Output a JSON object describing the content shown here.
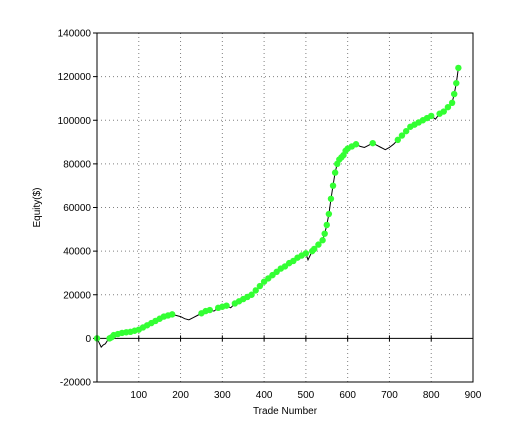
{
  "chart_data": {
    "type": "line",
    "title": "",
    "xlabel": "Trade Number",
    "ylabel": "Equity($)",
    "xlim": [
      0,
      900
    ],
    "ylim": [
      -20000,
      140000
    ],
    "x_ticks": [
      100,
      200,
      300,
      400,
      500,
      600,
      700,
      800,
      900
    ],
    "x_tick_labels": [
      "100",
      "200",
      "300",
      "400",
      "500",
      "600",
      "700",
      "800",
      "900"
    ],
    "y_ticks": [
      -20000,
      0,
      20000,
      40000,
      60000,
      80000,
      100000,
      120000,
      140000
    ],
    "y_tick_labels": [
      "-20000",
      "0",
      "20000",
      "40000",
      "60000",
      "80000",
      "100000",
      "120000",
      "140000"
    ],
    "grid": true,
    "legend": "none",
    "colors": {
      "line": "#000000",
      "marker": "#33ff33",
      "grid": "#808080",
      "frame": "#000000"
    },
    "series": [
      {
        "x": [
          0,
          5,
          10,
          15,
          20,
          25,
          30,
          35,
          40,
          50,
          60,
          70,
          80,
          90,
          100,
          110,
          120,
          130,
          140,
          150,
          160,
          170,
          180,
          190,
          200,
          210,
          220,
          230,
          240,
          250,
          260,
          270,
          280,
          290,
          300,
          310,
          320,
          330,
          340,
          350,
          360,
          370,
          380,
          390,
          400,
          410,
          420,
          430,
          440,
          450,
          460,
          470,
          480,
          490,
          500,
          505,
          510,
          515,
          520,
          530,
          540,
          545,
          550,
          555,
          560,
          565,
          570,
          575,
          580,
          585,
          590,
          595,
          600,
          610,
          620,
          630,
          640,
          650,
          660,
          670,
          680,
          690,
          700,
          710,
          720,
          730,
          740,
          750,
          760,
          770,
          780,
          790,
          800,
          810,
          820,
          830,
          840,
          850,
          855,
          860,
          865
        ],
        "values": [
          0,
          -2000,
          -4000,
          -3000,
          -2500,
          -1000,
          0,
          500,
          1500,
          2000,
          2500,
          2800,
          3000,
          3500,
          4000,
          5000,
          6000,
          7000,
          8000,
          9000,
          10000,
          10500,
          11000,
          10500,
          10000,
          9000,
          8500,
          9500,
          10500,
          11500,
          12500,
          13000,
          12500,
          14000,
          14500,
          15000,
          14000,
          16000,
          17000,
          18000,
          19000,
          20000,
          22000,
          24000,
          26000,
          27500,
          29000,
          30500,
          32000,
          33000,
          34500,
          35500,
          37000,
          38000,
          39000,
          36000,
          38000,
          40000,
          41000,
          43000,
          45000,
          48000,
          52000,
          57000,
          64000,
          70000,
          76000,
          80000,
          82000,
          83000,
          84000,
          86000,
          87000,
          88000,
          89000,
          88000,
          87500,
          88500,
          89500,
          88500,
          87500,
          86500,
          87500,
          89000,
          91000,
          93000,
          95000,
          97000,
          98000,
          99000,
          100000,
          101000,
          102000,
          100500,
          103000,
          104000,
          106000,
          108000,
          112000,
          117000,
          124000
        ]
      }
    ]
  }
}
